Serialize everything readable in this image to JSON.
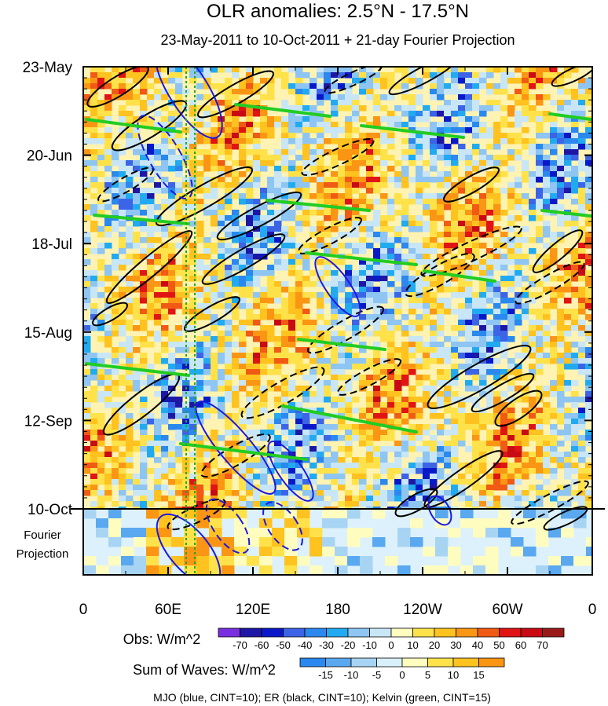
{
  "chart_data": {
    "type": "heatmap",
    "title": "OLR anomalies: 2.5°N - 17.5°N",
    "subtitle": "23-May-2011 to 10-Oct-2011 + 21-day Fourier Projection",
    "y_ticks": [
      "23-May",
      "20-Jun",
      "18-Jul",
      "15-Aug",
      "12-Sep",
      "10-Oct"
    ],
    "projection_label": [
      "Fourier",
      "Projection"
    ],
    "x_ticks": [
      "0",
      "60E",
      "120E",
      "180",
      "120W",
      "60W",
      "0"
    ],
    "obs_legend": {
      "label": "Obs: W/m^2",
      "levels": [
        "-70",
        "-60",
        "-50",
        "-40",
        "-30",
        "-20",
        "-10",
        "0",
        "10",
        "20",
        "30",
        "40",
        "50",
        "60",
        "70"
      ],
      "colors": [
        "#7a2ee0",
        "#1e17a6",
        "#0a19c8",
        "#3c64e6",
        "#2a88ee",
        "#22aaf0",
        "#8ec5f2",
        "#c8e6f6",
        "#fffcc0",
        "#ffe24a",
        "#ffc21e",
        "#fa9614",
        "#f05a14",
        "#e01414",
        "#c80a14",
        "#9a1a1a"
      ]
    },
    "waves_legend": {
      "label": "Sum of Waves: W/m^2",
      "levels": [
        "-15",
        "-10",
        "-5",
        "0",
        "5",
        "10",
        "15"
      ],
      "colors": [
        "#2a88ee",
        "#5aa8f0",
        "#a8d4f4",
        "#d8f0fa",
        "#fffcc0",
        "#ffe24a",
        "#ffc21e",
        "#fa9614"
      ]
    },
    "footnote": "MJO (blue, CINT=10); ER (black, CINT=10); Kelvin (green, CINT=15)",
    "contour_colors": {
      "mjo": "#1a1ae0",
      "er": "#000000",
      "kelvin": "#22cc22"
    }
  }
}
